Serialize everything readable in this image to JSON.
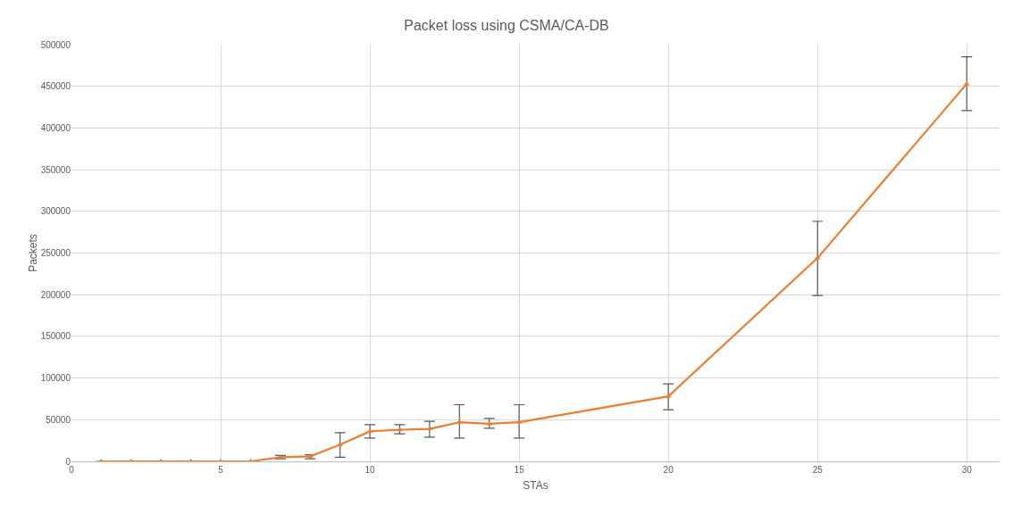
{
  "chart_data": {
    "type": "line",
    "title": "Packet loss using CSMA/CA-DB",
    "xlabel": "STAs",
    "ylabel": "Packets",
    "x": [
      1,
      2,
      3,
      4,
      5,
      6,
      7,
      8,
      9,
      10,
      11,
      12,
      13,
      14,
      15,
      20,
      25,
      30
    ],
    "series": [
      {
        "color": "#ed7d31",
        "values": [
          0,
          0,
          0,
          0,
          0,
          0,
          5000,
          6000,
          20000,
          36000,
          38000,
          39000,
          47000,
          45000,
          47000,
          78000,
          244000,
          453000
        ],
        "errors": [
          null,
          null,
          null,
          null,
          null,
          null,
          [
            3000,
            7000
          ],
          [
            3000,
            8000
          ],
          [
            5000,
            34500
          ],
          [
            28000,
            44000
          ],
          [
            33000,
            44000
          ],
          [
            29000,
            48000
          ],
          [
            28000,
            68000
          ],
          [
            39700,
            51500
          ],
          [
            28000,
            68000
          ],
          [
            62000,
            93000
          ],
          [
            199000,
            288000
          ],
          [
            421000,
            485500
          ]
        ]
      }
    ],
    "xlim": [
      0,
      31.1
    ],
    "xticks": [
      0,
      5,
      10,
      15,
      20,
      25,
      30
    ],
    "ylim": [
      0,
      500000
    ],
    "yticks": [
      0,
      50000,
      100000,
      150000,
      200000,
      250000,
      300000,
      350000,
      400000,
      450000,
      500000
    ],
    "grid": true,
    "legend": false,
    "marker": "triangle",
    "line_style": "solid"
  }
}
